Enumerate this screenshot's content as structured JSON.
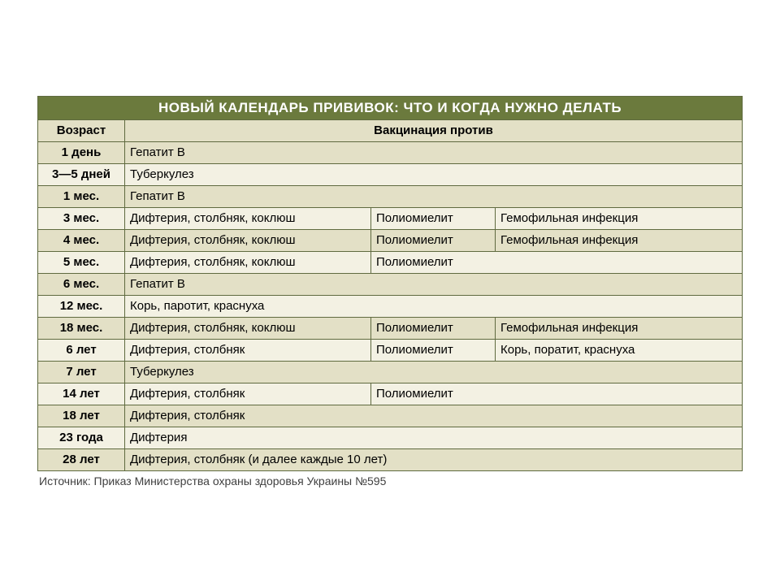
{
  "title": "НОВЫЙ КАЛЕНДАРЬ ПРИВИВОК: ЧТО И КОГДА НУЖНО ДЕЛАТЬ",
  "columns": {
    "age": "Возраст",
    "vacc": "Вакцинация против"
  },
  "rows": [
    {
      "age": "1 день",
      "c2": "Гепатит В",
      "span": 3
    },
    {
      "age": "3—5 дней",
      "c2": "Туберкулез",
      "span": 3
    },
    {
      "age": "1 мес.",
      "c2": "Гепатит В",
      "span": 3
    },
    {
      "age": "3 мес.",
      "c2": "Дифтерия, столбняк, коклюш",
      "c3": "Полиомиелит",
      "c4": "Гемофильная инфекция"
    },
    {
      "age": "4 мес.",
      "c2": "Дифтерия, столбняк, коклюш",
      "c3": "Полиомиелит",
      "c4": "Гемофильная инфекция"
    },
    {
      "age": "5 мес.",
      "c2": "Дифтерия, столбняк, коклюш",
      "c3": "Полиомиелит",
      "c4span": 2
    },
    {
      "age": "6 мес.",
      "c2": "Гепатит В",
      "span": 3
    },
    {
      "age": "12 мес.",
      "c2": "Корь, паротит, краснуха",
      "span": 3
    },
    {
      "age": "18 мес.",
      "c2": "Дифтерия, столбняк, коклюш",
      "c3": "Полиомиелит",
      "c4": "Гемофильная инфекция"
    },
    {
      "age": "6 лет",
      "c2": "Дифтерия, столбняк",
      "c3": "Полиомиелит",
      "c4": "Корь, поратит, краснуха"
    },
    {
      "age": "7 лет",
      "c2": "Туберкулез",
      "span": 3
    },
    {
      "age": "14 лет",
      "c2": "Дифтерия, столбняк",
      "c3": "Полиомиелит",
      "c4span": 2
    },
    {
      "age": "18 лет",
      "c2": "Дифтерия, столбняк",
      "span": 3
    },
    {
      "age": "23 года",
      "c2": "Дифтерия",
      "span": 3
    },
    {
      "age": "28 лет",
      "c2": "Дифтерия, столбняк (и далее каждые 10 лет)",
      "span": 3
    }
  ],
  "source": "Источник:  Приказ Министерства охраны здоровья Украины №595",
  "colors": {
    "header_bg": "#6b7a3d",
    "header_fg": "#ffffff",
    "row_even": "#e3e0c6",
    "row_odd": "#f3f1e3",
    "border": "#5f6a3f"
  }
}
